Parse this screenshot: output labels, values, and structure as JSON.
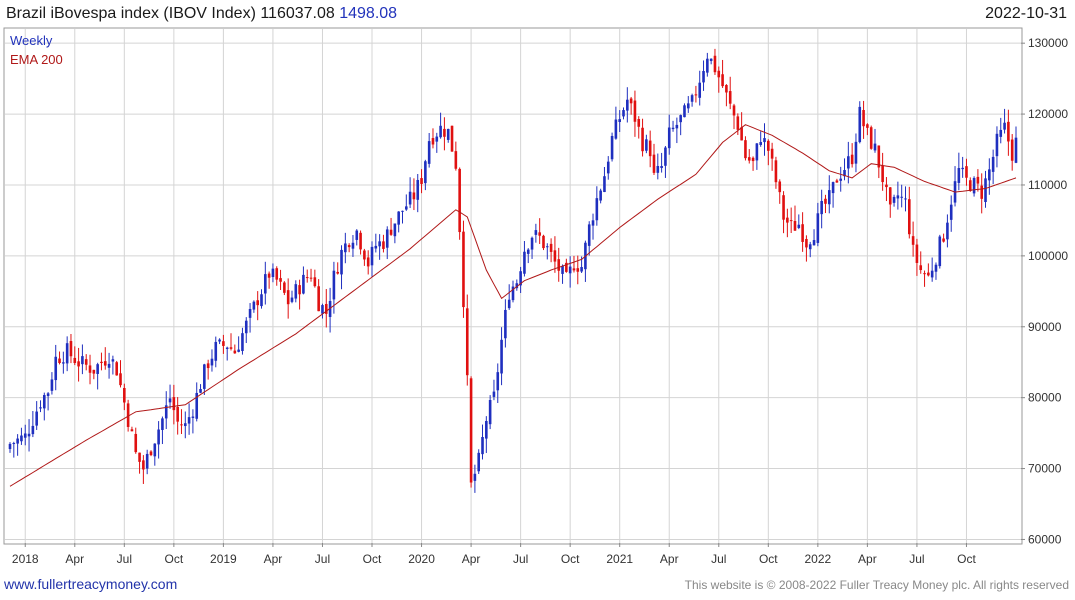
{
  "header": {
    "title": "Brazil iBovespa index (IBOV Index) 116037.08",
    "change": "1498.08",
    "date": "2022-10-31"
  },
  "footer": {
    "site": "www.fullertreacymoney.com",
    "copyright": "This website is © 2008-2022 Fuller Treacy Money plc. All rights reserved"
  },
  "colors": {
    "up": "#1f2fbf",
    "down": "#e01010",
    "ema": "#b01818",
    "grid": "#d4d4d4"
  },
  "chart_data": {
    "type": "candlestick",
    "title": "Brazil iBovespa index (IBOV Index)",
    "last": 116037.08,
    "change": 1498.08,
    "frequency": "Weekly",
    "legend": [
      "Weekly",
      "EMA 200"
    ],
    "legend_position": "top-left",
    "x_ticks": [
      "2018",
      "Apr",
      "Jul",
      "Oct",
      "2019",
      "Apr",
      "Jul",
      "Oct",
      "2020",
      "Apr",
      "Jul",
      "Oct",
      "2021",
      "Apr",
      "Jul",
      "Oct",
      "2022",
      "Apr",
      "Jul",
      "Oct"
    ],
    "y_ticks": [
      60000,
      70000,
      80000,
      90000,
      100000,
      110000,
      120000,
      130000
    ],
    "ylim": [
      59500,
      132000
    ],
    "y_axis_side": "right",
    "grid": true,
    "close_anchors": [
      [
        0,
        73500
      ],
      [
        4,
        74500
      ],
      [
        8,
        79500
      ],
      [
        10,
        81000
      ],
      [
        12,
        85500
      ],
      [
        15,
        86500
      ],
      [
        18,
        85000
      ],
      [
        22,
        84000
      ],
      [
        26,
        86000
      ],
      [
        28,
        84000
      ],
      [
        31,
        77000
      ],
      [
        33,
        72000
      ],
      [
        35,
        70000
      ],
      [
        37,
        73000
      ],
      [
        40,
        77000
      ],
      [
        42,
        80000
      ],
      [
        44,
        76500
      ],
      [
        46,
        76000
      ],
      [
        48,
        78500
      ],
      [
        50,
        82000
      ],
      [
        52,
        85000
      ],
      [
        54,
        87000
      ],
      [
        57,
        87500
      ],
      [
        59,
        86500
      ],
      [
        61,
        89000
      ],
      [
        63,
        91500
      ],
      [
        65,
        94000
      ],
      [
        68,
        97500
      ],
      [
        70,
        96500
      ],
      [
        73,
        93500
      ],
      [
        75,
        95000
      ],
      [
        77,
        96500
      ],
      [
        79,
        97500
      ],
      [
        81,
        93500
      ],
      [
        83,
        92000
      ],
      [
        85,
        97000
      ],
      [
        87,
        100500
      ],
      [
        89,
        102500
      ],
      [
        91,
        103500
      ],
      [
        94,
        99000
      ],
      [
        96,
        101500
      ],
      [
        98,
        102000
      ],
      [
        100,
        104000
      ],
      [
        103,
        106500
      ],
      [
        106,
        108500
      ],
      [
        108,
        111000
      ],
      [
        110,
        116500
      ],
      [
        113,
        118000
      ],
      [
        115,
        117500
      ],
      [
        117,
        113000
      ],
      [
        118,
        104000
      ],
      [
        119,
        94000
      ],
      [
        120,
        82000
      ],
      [
        121,
        67500
      ],
      [
        123,
        71000
      ],
      [
        125,
        77000
      ],
      [
        127,
        80000
      ],
      [
        129,
        88000
      ],
      [
        131,
        95000
      ],
      [
        133,
        96500
      ],
      [
        135,
        101000
      ],
      [
        137,
        103000
      ],
      [
        139,
        102500
      ],
      [
        141,
        101000
      ],
      [
        143,
        99000
      ],
      [
        146,
        96500
      ],
      [
        148,
        99000
      ],
      [
        150,
        98500
      ],
      [
        152,
        104000
      ],
      [
        154,
        108000
      ],
      [
        156,
        111500
      ],
      [
        158,
        116500
      ],
      [
        160,
        119500
      ],
      [
        162,
        122000
      ],
      [
        164,
        119500
      ],
      [
        166,
        116000
      ],
      [
        168,
        115000
      ],
      [
        169,
        111000
      ],
      [
        171,
        112500
      ],
      [
        173,
        117000
      ],
      [
        175,
        118500
      ],
      [
        177,
        120000
      ],
      [
        179,
        121500
      ],
      [
        181,
        125000
      ],
      [
        183,
        128500
      ],
      [
        185,
        126500
      ],
      [
        187,
        124000
      ],
      [
        189,
        121000
      ],
      [
        191,
        118500
      ],
      [
        193,
        114000
      ],
      [
        195,
        113000
      ],
      [
        197,
        117000
      ],
      [
        199,
        115000
      ],
      [
        201,
        110500
      ],
      [
        203,
        105500
      ],
      [
        205,
        104000
      ],
      [
        207,
        104500
      ],
      [
        209,
        102000
      ],
      [
        211,
        103500
      ],
      [
        213,
        106500
      ],
      [
        215,
        108000
      ],
      [
        217,
        111000
      ],
      [
        219,
        112500
      ],
      [
        221,
        114000
      ],
      [
        223,
        120000
      ],
      [
        225,
        117000
      ],
      [
        227,
        115000
      ],
      [
        229,
        111000
      ],
      [
        231,
        106000
      ],
      [
        233,
        108500
      ],
      [
        235,
        107500
      ],
      [
        237,
        100500
      ],
      [
        239,
        98000
      ],
      [
        241,
        97000
      ],
      [
        243,
        100000
      ],
      [
        245,
        103000
      ],
      [
        247,
        108000
      ],
      [
        249,
        112000
      ],
      [
        251,
        110500
      ],
      [
        253,
        110000
      ],
      [
        255,
        109000
      ],
      [
        257,
        112000
      ],
      [
        259,
        116000
      ],
      [
        261,
        118000
      ],
      [
        263,
        114500
      ],
      [
        264,
        116037
      ]
    ],
    "ema_anchors": [
      [
        0,
        67500
      ],
      [
        20,
        74000
      ],
      [
        33,
        78000
      ],
      [
        46,
        79000
      ],
      [
        60,
        84000
      ],
      [
        75,
        89000
      ],
      [
        90,
        95000
      ],
      [
        105,
        101000
      ],
      [
        117,
        106500
      ],
      [
        120,
        105500
      ],
      [
        125,
        98000
      ],
      [
        129,
        94000
      ],
      [
        135,
        96500
      ],
      [
        142,
        98000
      ],
      [
        150,
        99500
      ],
      [
        160,
        104000
      ],
      [
        170,
        108000
      ],
      [
        180,
        111500
      ],
      [
        187,
        116000
      ],
      [
        193,
        118500
      ],
      [
        200,
        117000
      ],
      [
        208,
        114500
      ],
      [
        215,
        112000
      ],
      [
        221,
        111000
      ],
      [
        226,
        113000
      ],
      [
        232,
        112500
      ],
      [
        240,
        110500
      ],
      [
        248,
        109000
      ],
      [
        256,
        109500
      ],
      [
        264,
        111000
      ]
    ]
  }
}
